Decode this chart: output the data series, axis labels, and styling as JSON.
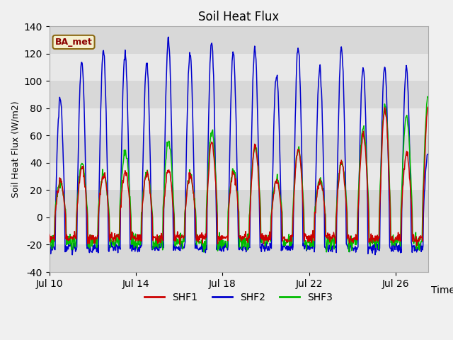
{
  "title": "Soil Heat Flux",
  "ylabel": "Soil Heat Flux (W/m2)",
  "xlabel": "Time",
  "ylim": [
    -40,
    140
  ],
  "yticks": [
    -40,
    -20,
    0,
    20,
    40,
    60,
    80,
    100,
    120,
    140
  ],
  "xtick_labels": [
    "Jul 10",
    "Jul 14",
    "Jul 18",
    "Jul 22",
    "Jul 26"
  ],
  "xtick_positions": [
    0,
    4,
    8,
    12,
    16
  ],
  "n_days": 17.5,
  "colors": {
    "SHF1": "#cc0000",
    "SHF2": "#0000cc",
    "SHF3": "#00bb00"
  },
  "legend_label": "BA_met",
  "fig_facecolor": "#f0f0f0",
  "plot_bg_color": "#e8e8e8",
  "band_colors": [
    "#d8d8d8",
    "#e8e8e8"
  ],
  "shf1_day_amps": [
    26,
    36,
    31,
    34,
    32,
    35,
    30,
    55,
    33,
    52,
    26,
    50,
    26,
    40,
    60,
    79,
    47,
    80
  ],
  "shf2_day_amps": [
    87,
    115,
    122,
    120,
    113,
    131,
    120,
    129,
    120,
    124,
    105,
    125,
    109,
    125,
    110,
    111,
    110,
    47
  ],
  "shf3_day_amps": [
    26,
    40,
    32,
    48,
    33,
    55,
    30,
    63,
    35,
    52,
    28,
    50,
    27,
    40,
    65,
    82,
    74,
    89
  ]
}
